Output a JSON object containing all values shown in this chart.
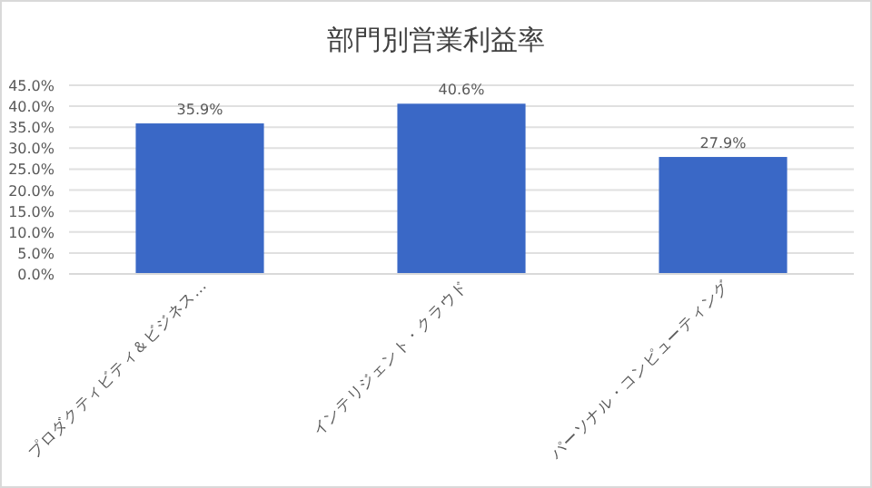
{
  "chart_data": {
    "type": "bar",
    "title": "部門別営業利益率",
    "categories": [
      "プロダクティビティ＆ビジネス…",
      "インテリジェント・クラウド",
      "パーソナル・コンピューティング"
    ],
    "values": [
      35.9,
      40.6,
      27.9
    ],
    "color": "#3a68c6",
    "value_labels": [
      "35.9%",
      "40.6%",
      "27.9%"
    ],
    "ylim": [
      0,
      45
    ],
    "yticks": [
      {
        "value": 0,
        "label": "0.0%"
      },
      {
        "value": 5,
        "label": "5.0%"
      },
      {
        "value": 10,
        "label": "10.0%"
      },
      {
        "value": 15,
        "label": "15.0%"
      },
      {
        "value": 20,
        "label": "20.0%"
      },
      {
        "value": 25,
        "label": "25.0%"
      },
      {
        "value": 30,
        "label": "30.0%"
      },
      {
        "value": 35,
        "label": "35.0%"
      },
      {
        "value": 40,
        "label": "40.0%"
      },
      {
        "value": 45,
        "label": "45.0%"
      }
    ],
    "grid": "y"
  }
}
